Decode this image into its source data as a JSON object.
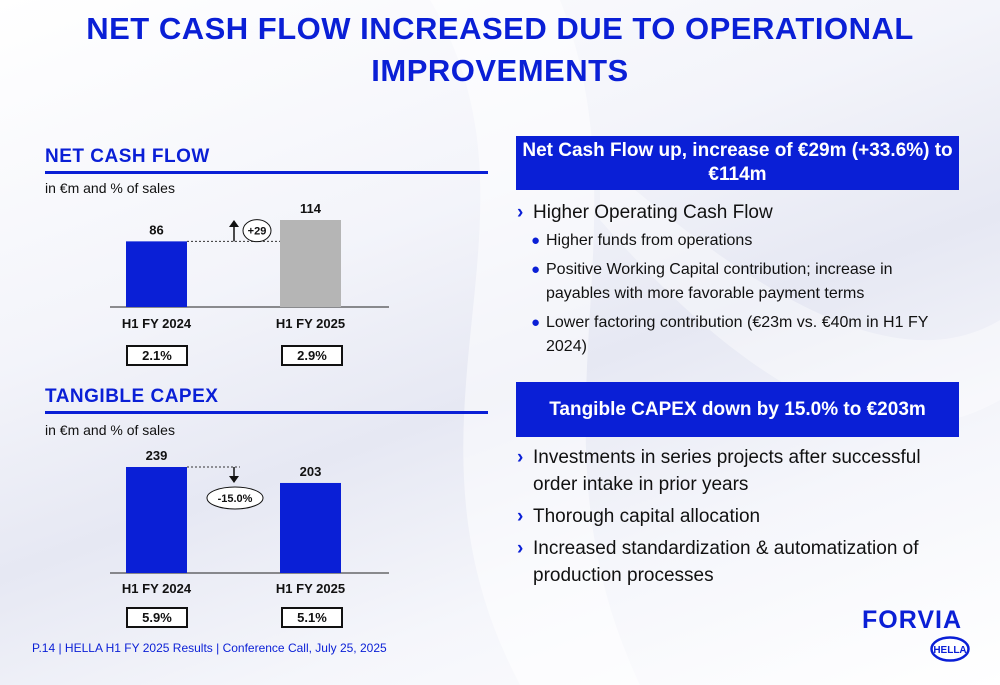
{
  "title": "NET CASH FLOW INCREASED DUE TO OPERATIONAL IMPROVEMENTS",
  "left": {
    "ncf": {
      "heading": "NET CASH FLOW",
      "subnote": "in €m and % of sales",
      "pct": [
        "2.1%",
        "2.9%"
      ]
    },
    "capex": {
      "heading": "TANGIBLE CAPEX",
      "subnote": "in €m and % of sales",
      "pct": [
        "5.9%",
        "5.1%"
      ]
    }
  },
  "chart_data": [
    {
      "type": "bar",
      "title": "NET CASH FLOW",
      "categories": [
        "H1 FY 2024",
        "H1 FY 2025"
      ],
      "values": [
        86,
        114
      ],
      "colors": [
        "#0a1fd6",
        "#b5b5b5"
      ],
      "delta_label": "+29",
      "ylim": [
        0,
        114
      ]
    },
    {
      "type": "bar",
      "title": "TANGIBLE CAPEX",
      "categories": [
        "H1 FY 2024",
        "H1 FY 2025"
      ],
      "values": [
        239,
        203
      ],
      "colors": [
        "#0a1fd6",
        "#0a1fd6"
      ],
      "delta_label": "-15.0%",
      "ylim": [
        0,
        239
      ]
    }
  ],
  "right": {
    "ncf_banner": [
      "Net Cash Flow up, increase of €29m (+33.6%) to",
      "€114m"
    ],
    "ncf_bullets": {
      "main": "Higher Operating Cash Flow",
      "subs": [
        [
          "Higher funds from operations"
        ],
        [
          "Positive Working Capital contribution; increase in",
          "payables with more favorable payment terms"
        ],
        [
          "Lower factoring contribution (€23m vs. €40m in H1 FY",
          "2024)"
        ]
      ]
    },
    "capex_banner": "Tangible CAPEX down by 15.0% to €203m",
    "capex_bullets": [
      [
        "Investments in series projects after successful",
        "order intake in prior years"
      ],
      [
        "Thorough capital allocation"
      ],
      [
        "Increased standardization & automatization of",
        "production processes"
      ]
    ]
  },
  "footer": "P.14 | HELLA H1 FY 2025 Results | Conference Call, July 25, 2025",
  "logos": {
    "forvia": "FORVIA",
    "hella": "HELLA"
  },
  "colors": {
    "brand_blue": "#0a1fd6",
    "bar_grey": "#b5b5b5"
  }
}
